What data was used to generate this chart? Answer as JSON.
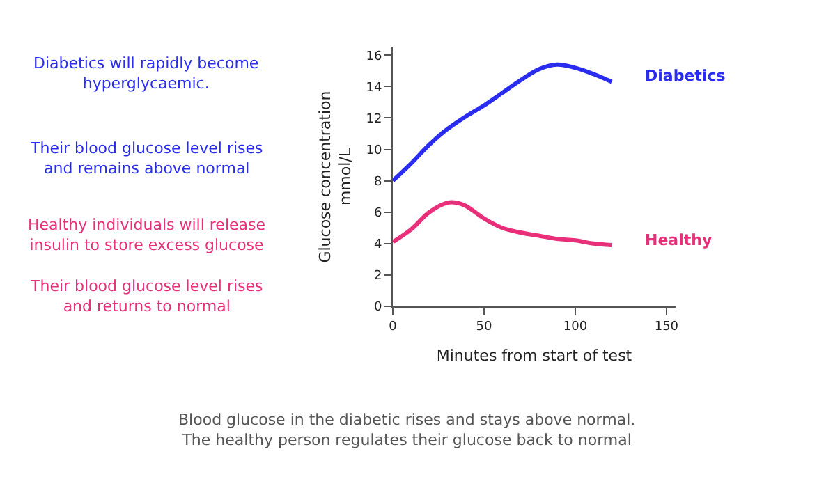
{
  "chart_data": {
    "type": "line",
    "xlabel": "Minutes from start of test",
    "ylabel": "Glucose concentration\nmmol/L",
    "xlim": [
      0,
      155
    ],
    "xticks": [
      0,
      50,
      100,
      150
    ],
    "ylim": [
      0,
      16.5
    ],
    "yticks": [
      0,
      2,
      4,
      6,
      8,
      10,
      12,
      14,
      16
    ],
    "grid": false,
    "legend": false,
    "marker": "none",
    "line_style": "solid",
    "series": [
      {
        "name": "Diabetics",
        "color": "#2a2df0",
        "x": [
          0,
          10,
          20,
          30,
          40,
          50,
          60,
          70,
          80,
          90,
          100,
          110,
          120
        ],
        "values": [
          8,
          9.1,
          10.3,
          11.3,
          12.1,
          12.8,
          13.6,
          14.4,
          15.1,
          15.4,
          15.2,
          14.8,
          14.3
        ]
      },
      {
        "name": "Healthy",
        "color": "#e8307a",
        "x": [
          0,
          10,
          20,
          30,
          35,
          40,
          50,
          60,
          70,
          80,
          90,
          100,
          110,
          120
        ],
        "values": [
          4.1,
          4.9,
          6.0,
          6.6,
          6.6,
          6.4,
          5.6,
          5.0,
          4.7,
          4.5,
          4.3,
          4.2,
          4.0,
          3.9
        ]
      }
    ],
    "annotations": [
      "Diabetics will rapidly become\nhyperglycaemic.",
      "Their blood glucose level rises\nand remains above normal",
      "Healthy individuals will release\ninsulin to store excess glucose",
      "Their blood glucose level rises\nand returns to normal",
      "Blood glucose in the diabetic rises and stays above normal.\nThe healthy person regulates their glucose back to normal"
    ]
  }
}
